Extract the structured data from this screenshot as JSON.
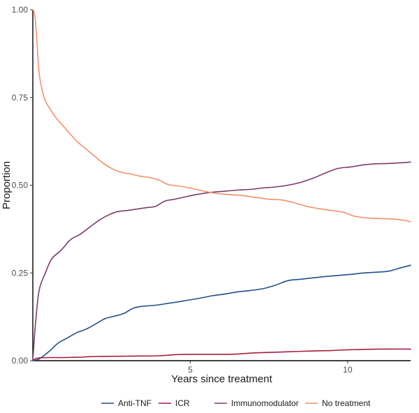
{
  "chart_data": {
    "type": "line",
    "xlabel": "Years since treatment",
    "ylabel": "Proportion",
    "xlim": [
      0,
      12
    ],
    "ylim": [
      0,
      1
    ],
    "x_ticks": [
      5,
      10
    ],
    "x_tick_labels": [
      "5",
      "10"
    ],
    "y_ticks": [
      0,
      0.25,
      0.5,
      0.75,
      1
    ],
    "y_tick_labels": [
      "0.00",
      "0.25",
      "0.50",
      "0.75",
      "1.00"
    ],
    "grid": false,
    "legend_position": "bottom",
    "series": [
      {
        "name": "Anti-TNF",
        "color": "#1f4e8c",
        "points": [
          [
            0,
            0
          ],
          [
            0.2,
            0.005
          ],
          [
            0.5,
            0.025
          ],
          [
            0.8,
            0.05
          ],
          [
            1.1,
            0.065
          ],
          [
            1.4,
            0.08
          ],
          [
            1.7,
            0.09
          ],
          [
            2.0,
            0.105
          ],
          [
            2.3,
            0.12
          ],
          [
            2.6,
            0.127
          ],
          [
            2.9,
            0.135
          ],
          [
            3.2,
            0.15
          ],
          [
            3.5,
            0.155
          ],
          [
            3.9,
            0.158
          ],
          [
            4.2,
            0.162
          ],
          [
            4.5,
            0.166
          ],
          [
            4.9,
            0.172
          ],
          [
            5.3,
            0.178
          ],
          [
            5.7,
            0.185
          ],
          [
            6.1,
            0.19
          ],
          [
            6.5,
            0.196
          ],
          [
            6.9,
            0.2
          ],
          [
            7.3,
            0.205
          ],
          [
            7.7,
            0.215
          ],
          [
            8.1,
            0.228
          ],
          [
            8.5,
            0.232
          ],
          [
            8.9,
            0.236
          ],
          [
            9.3,
            0.24
          ],
          [
            9.7,
            0.243
          ],
          [
            10.1,
            0.246
          ],
          [
            10.5,
            0.25
          ],
          [
            10.9,
            0.252
          ],
          [
            11.3,
            0.255
          ],
          [
            11.7,
            0.265
          ],
          [
            12,
            0.272
          ]
        ]
      },
      {
        "name": "ICR",
        "color": "#a61c3c",
        "points": [
          [
            0,
            0
          ],
          [
            0.2,
            0.008
          ],
          [
            1.0,
            0.009
          ],
          [
            1.5,
            0.01
          ],
          [
            2.0,
            0.012
          ],
          [
            3.0,
            0.013
          ],
          [
            4.0,
            0.014
          ],
          [
            4.5,
            0.017
          ],
          [
            5.0,
            0.018
          ],
          [
            6.0,
            0.018
          ],
          [
            6.5,
            0.019
          ],
          [
            7.0,
            0.022
          ],
          [
            8.0,
            0.025
          ],
          [
            9.0,
            0.028
          ],
          [
            9.5,
            0.029
          ],
          [
            10.0,
            0.031
          ],
          [
            11.0,
            0.033
          ],
          [
            12,
            0.033
          ]
        ]
      },
      {
        "name": "Immunomodulator",
        "color": "#7b3a6e",
        "points": [
          [
            0,
            0
          ],
          [
            0.08,
            0.1
          ],
          [
            0.2,
            0.2
          ],
          [
            0.4,
            0.25
          ],
          [
            0.6,
            0.29
          ],
          [
            0.9,
            0.315
          ],
          [
            1.2,
            0.345
          ],
          [
            1.5,
            0.36
          ],
          [
            1.8,
            0.38
          ],
          [
            2.1,
            0.4
          ],
          [
            2.4,
            0.415
          ],
          [
            2.7,
            0.425
          ],
          [
            3.0,
            0.428
          ],
          [
            3.3,
            0.432
          ],
          [
            3.6,
            0.436
          ],
          [
            3.9,
            0.44
          ],
          [
            4.2,
            0.455
          ],
          [
            4.5,
            0.46
          ],
          [
            4.9,
            0.468
          ],
          [
            5.3,
            0.475
          ],
          [
            5.7,
            0.48
          ],
          [
            6.1,
            0.483
          ],
          [
            6.5,
            0.486
          ],
          [
            6.9,
            0.488
          ],
          [
            7.3,
            0.492
          ],
          [
            7.7,
            0.495
          ],
          [
            8.1,
            0.5
          ],
          [
            8.5,
            0.508
          ],
          [
            8.9,
            0.52
          ],
          [
            9.3,
            0.535
          ],
          [
            9.7,
            0.548
          ],
          [
            10.1,
            0.552
          ],
          [
            10.5,
            0.558
          ],
          [
            10.9,
            0.561
          ],
          [
            11.3,
            0.562
          ],
          [
            11.7,
            0.564
          ],
          [
            12,
            0.566
          ]
        ]
      },
      {
        "name": "No treatment",
        "color": "#f4906a",
        "points": [
          [
            0,
            1.0
          ],
          [
            0.05,
            0.99
          ],
          [
            0.1,
            0.95
          ],
          [
            0.15,
            0.88
          ],
          [
            0.2,
            0.82
          ],
          [
            0.3,
            0.77
          ],
          [
            0.4,
            0.74
          ],
          [
            0.6,
            0.71
          ],
          [
            0.8,
            0.685
          ],
          [
            1.0,
            0.665
          ],
          [
            1.2,
            0.645
          ],
          [
            1.4,
            0.625
          ],
          [
            1.6,
            0.61
          ],
          [
            1.8,
            0.595
          ],
          [
            2.0,
            0.58
          ],
          [
            2.2,
            0.565
          ],
          [
            2.5,
            0.548
          ],
          [
            2.8,
            0.537
          ],
          [
            3.1,
            0.532
          ],
          [
            3.4,
            0.526
          ],
          [
            3.7,
            0.522
          ],
          [
            4.0,
            0.515
          ],
          [
            4.3,
            0.502
          ],
          [
            4.7,
            0.497
          ],
          [
            5.1,
            0.49
          ],
          [
            5.5,
            0.482
          ],
          [
            5.9,
            0.476
          ],
          [
            6.3,
            0.473
          ],
          [
            6.7,
            0.47
          ],
          [
            7.1,
            0.465
          ],
          [
            7.5,
            0.46
          ],
          [
            7.9,
            0.458
          ],
          [
            8.3,
            0.45
          ],
          [
            8.7,
            0.44
          ],
          [
            9.1,
            0.433
          ],
          [
            9.5,
            0.428
          ],
          [
            9.9,
            0.422
          ],
          [
            10.2,
            0.412
          ],
          [
            10.6,
            0.407
          ],
          [
            11.0,
            0.405
          ],
          [
            11.4,
            0.404
          ],
          [
            11.8,
            0.4
          ],
          [
            12,
            0.396
          ]
        ]
      }
    ]
  }
}
